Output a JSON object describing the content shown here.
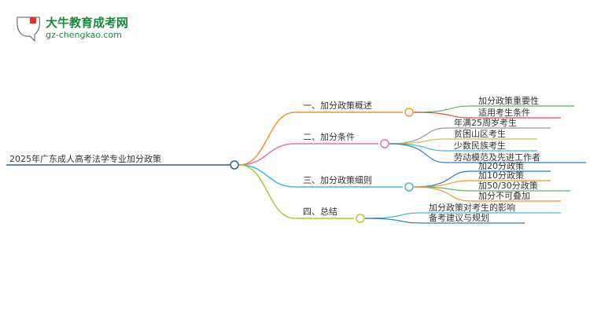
{
  "logo": {
    "title": "大牛教育成考网",
    "url": "gz-chengkao.com",
    "mark": "大牛"
  },
  "root": {
    "label": "2025年广东成人高考法学专业加分政策",
    "color": "#2b5d9b"
  },
  "branches": [
    {
      "label": "一、加分政策概述",
      "color": "#f7922e",
      "children": [
        {
          "label": "加分政策重要性",
          "color": "#5cb85c"
        },
        {
          "label": "适用考生条件",
          "color": "#e74c3c"
        }
      ]
    },
    {
      "label": "二、加分条件",
      "color": "#e86fb8",
      "children": [
        {
          "label": "年满25周岁考生",
          "color": "#999999"
        },
        {
          "label": "贫困山区考生",
          "color": "#c8c83c"
        },
        {
          "label": "少数民族考生",
          "color": "#3bbfd0"
        },
        {
          "label": "劳动模范及先进工作者",
          "color": "#2b7bc0"
        }
      ]
    },
    {
      "label": "三、加分政策细则",
      "color": "#3bbfd0",
      "children": [
        {
          "label": "加20分政策",
          "color": "#2b7bc0"
        },
        {
          "label": "加10分政策",
          "color": "#f7922e"
        },
        {
          "label": "加50/30分政策",
          "color": "#5cb85c"
        },
        {
          "label": "加分不可叠加",
          "color": "#f7922e"
        }
      ]
    },
    {
      "label": "四、总结",
      "color": "#b8c435",
      "children": [
        {
          "label": "加分政策对考生的影响",
          "color": "#3bbfd0"
        },
        {
          "label": "备考建议与规划",
          "color": "#2b7bc0"
        }
      ]
    }
  ]
}
